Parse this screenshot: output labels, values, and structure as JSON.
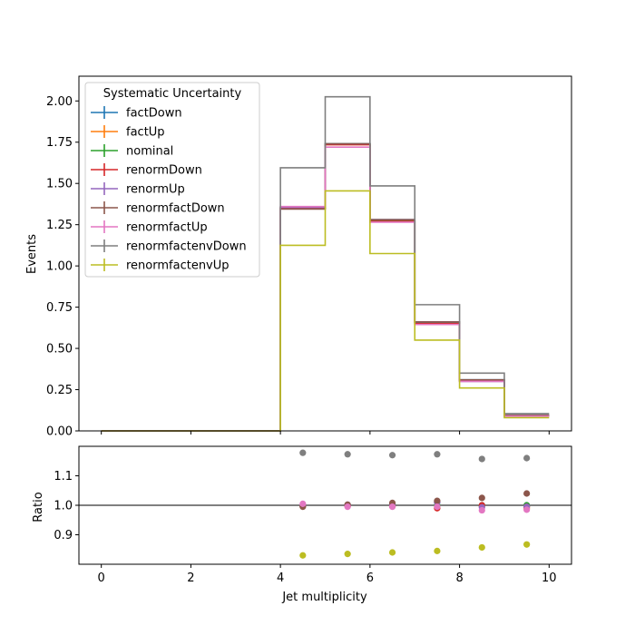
{
  "chart_data": [
    {
      "type": "step",
      "xlabel": "",
      "ylabel": "Events",
      "xlim": [
        -0.5,
        10.5
      ],
      "ylim": [
        0,
        2.15
      ],
      "xticks": [
        0,
        2,
        4,
        6,
        8,
        10
      ],
      "yticks": [
        "0.00",
        "0.25",
        "0.50",
        "0.75",
        "1.00",
        "1.25",
        "1.50",
        "1.75",
        "2.00"
      ],
      "legend": {
        "title": "Systematic Uncertainty",
        "placement": "upper-left",
        "entries": [
          "factDown",
          "factUp",
          "nominal",
          "renormDown",
          "renormUp",
          "renormfactDown",
          "renormfactUp",
          "renormfactenvDown",
          "renormfactenvUp"
        ]
      },
      "bin_edges": [
        0,
        1,
        2,
        3,
        4,
        5,
        6,
        7,
        8,
        9,
        10
      ],
      "series": [
        {
          "name": "factDown",
          "color": "#1f77b4",
          "values": [
            0,
            0,
            0,
            0,
            1.35,
            1.74,
            1.28,
            0.66,
            0.31,
            0.095
          ]
        },
        {
          "name": "factUp",
          "color": "#ff7f0e",
          "values": [
            0,
            0,
            0,
            0,
            1.35,
            1.735,
            1.275,
            0.655,
            0.305,
            0.09
          ]
        },
        {
          "name": "nominal",
          "color": "#2ca02c",
          "values": [
            0,
            0,
            0,
            0,
            1.355,
            1.74,
            1.275,
            0.655,
            0.305,
            0.092
          ]
        },
        {
          "name": "renormDown",
          "color": "#d62728",
          "values": [
            0,
            0,
            0,
            0,
            1.35,
            1.735,
            1.27,
            0.65,
            0.305,
            0.091
          ]
        },
        {
          "name": "renormUp",
          "color": "#9467bd",
          "values": [
            0,
            0,
            0,
            0,
            1.355,
            1.74,
            1.28,
            0.66,
            0.3,
            0.09
          ]
        },
        {
          "name": "renormfactDown",
          "color": "#8c564b",
          "values": [
            0,
            0,
            0,
            0,
            1.345,
            1.74,
            1.28,
            0.66,
            0.31,
            0.095
          ]
        },
        {
          "name": "renormfactUp",
          "color": "#e377c2",
          "values": [
            0,
            0,
            0,
            0,
            1.36,
            1.72,
            1.265,
            0.645,
            0.3,
            0.09
          ]
        },
        {
          "name": "renormfactenvDown",
          "color": "#7f7f7f",
          "values": [
            0,
            0,
            0,
            0,
            1.595,
            2.025,
            1.485,
            0.765,
            0.35,
            0.105
          ]
        },
        {
          "name": "renormfactenvUp",
          "color": "#bcbd22",
          "values": [
            0,
            0,
            0,
            0,
            1.125,
            1.455,
            1.075,
            0.55,
            0.26,
            0.08
          ]
        }
      ]
    },
    {
      "type": "scatter",
      "xlabel": "Jet multiplicity",
      "ylabel": "Ratio",
      "xlim": [
        -0.5,
        10.5
      ],
      "ylim": [
        0.8,
        1.2
      ],
      "xticks": [
        0,
        2,
        4,
        6,
        8,
        10
      ],
      "yticks": [
        "0.9",
        "1.0",
        "1.1"
      ],
      "reference_line": 1.0,
      "x": [
        4.5,
        5.5,
        6.5,
        7.5,
        8.5,
        9.5
      ],
      "series": [
        {
          "name": "factDown",
          "color": "#1f77b4",
          "values": [
            0.998,
            1.0,
            1.005,
            1.01,
            1.0,
            1.0
          ]
        },
        {
          "name": "factUp",
          "color": "#ff7f0e",
          "values": [
            1.0,
            0.998,
            0.997,
            0.992,
            0.998,
            0.99
          ]
        },
        {
          "name": "nominal",
          "color": "#2ca02c",
          "values": [
            1.0,
            1.0,
            1.0,
            1.0,
            1.0,
            1.0
          ]
        },
        {
          "name": "renormDown",
          "color": "#d62728",
          "values": [
            0.997,
            0.998,
            0.996,
            0.99,
            1.0,
            0.995
          ]
        },
        {
          "name": "renormUp",
          "color": "#9467bd",
          "values": [
            1.0,
            1.002,
            1.004,
            1.01,
            0.993,
            0.995
          ]
        },
        {
          "name": "renormfactDown",
          "color": "#8c564b",
          "values": [
            0.995,
            1.002,
            1.008,
            1.015,
            1.025,
            1.04
          ]
        },
        {
          "name": "renormfactUp",
          "color": "#e377c2",
          "values": [
            1.005,
            0.995,
            0.995,
            0.995,
            0.983,
            0.985
          ]
        },
        {
          "name": "renormfactenvDown",
          "color": "#7f7f7f",
          "values": [
            1.178,
            1.173,
            1.17,
            1.173,
            1.157,
            1.16
          ]
        },
        {
          "name": "renormfactenvUp",
          "color": "#bcbd22",
          "values": [
            0.83,
            0.835,
            0.84,
            0.845,
            0.857,
            0.867
          ]
        }
      ]
    }
  ]
}
